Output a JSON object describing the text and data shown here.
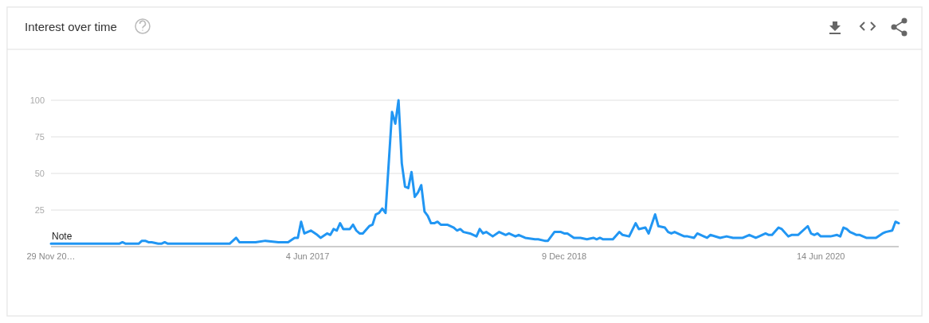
{
  "chart_data": {
    "type": "line",
    "title": "Interest over time",
    "x": [
      "2015-11-29",
      "2016-04-24",
      "2016-05-01",
      "2016-05-08",
      "2016-06-05",
      "2016-06-12",
      "2016-06-19",
      "2016-06-26",
      "2016-07-03",
      "2016-07-17",
      "2016-07-24",
      "2016-07-31",
      "2016-08-07",
      "2016-12-18",
      "2016-12-25",
      "2017-01-01",
      "2017-01-08",
      "2017-01-22",
      "2017-02-12",
      "2017-03-05",
      "2017-04-02",
      "2017-04-23",
      "2017-05-07",
      "2017-05-14",
      "2017-05-21",
      "2017-05-28",
      "2017-06-11",
      "2017-06-25",
      "2017-07-02",
      "2017-07-16",
      "2017-07-23",
      "2017-07-30",
      "2017-08-06",
      "2017-08-13",
      "2017-08-20",
      "2017-09-03",
      "2017-09-10",
      "2017-09-17",
      "2017-09-24",
      "2017-10-01",
      "2017-10-15",
      "2017-10-22",
      "2017-10-29",
      "2017-11-05",
      "2017-11-12",
      "2017-11-19",
      "2017-12-03",
      "2017-12-10",
      "2017-12-17",
      "2017-12-24",
      "2017-12-31",
      "2018-01-07",
      "2018-01-14",
      "2018-01-21",
      "2018-01-28",
      "2018-02-04",
      "2018-02-11",
      "2018-02-18",
      "2018-02-25",
      "2018-03-04",
      "2018-03-11",
      "2018-03-18",
      "2018-04-01",
      "2018-04-15",
      "2018-04-22",
      "2018-04-29",
      "2018-05-06",
      "2018-05-20",
      "2018-06-03",
      "2018-06-10",
      "2018-06-17",
      "2018-06-24",
      "2018-07-08",
      "2018-07-22",
      "2018-08-05",
      "2018-08-12",
      "2018-08-26",
      "2018-09-02",
      "2018-09-16",
      "2018-10-07",
      "2018-10-14",
      "2018-10-28",
      "2018-11-04",
      "2018-11-18",
      "2018-12-02",
      "2018-12-09",
      "2018-12-16",
      "2018-12-30",
      "2019-01-13",
      "2019-01-27",
      "2019-02-10",
      "2019-02-17",
      "2019-02-24",
      "2019-03-03",
      "2019-03-24",
      "2019-04-07",
      "2019-04-14",
      "2019-04-28",
      "2019-05-12",
      "2019-05-19",
      "2019-06-02",
      "2019-06-09",
      "2019-06-23",
      "2019-06-30",
      "2019-07-14",
      "2019-07-21",
      "2019-07-28",
      "2019-08-04",
      "2019-08-18",
      "2019-08-25",
      "2019-09-01",
      "2019-09-15",
      "2019-09-22",
      "2019-10-06",
      "2019-10-13",
      "2019-10-20",
      "2019-11-10",
      "2019-11-24",
      "2019-12-08",
      "2019-12-29",
      "2020-01-12",
      "2020-01-26",
      "2020-02-02",
      "2020-02-16",
      "2020-02-23",
      "2020-03-01",
      "2020-03-15",
      "2020-03-22",
      "2020-04-05",
      "2020-04-12",
      "2020-04-26",
      "2020-05-17",
      "2020-05-24",
      "2020-05-31",
      "2020-06-07",
      "2020-06-14",
      "2020-07-05",
      "2020-07-19",
      "2020-07-26",
      "2020-08-02",
      "2020-08-09",
      "2020-08-16",
      "2020-08-23",
      "2020-08-30",
      "2020-09-06",
      "2020-09-20",
      "2020-10-11",
      "2020-10-25",
      "2020-11-01",
      "2020-11-15",
      "2020-11-22",
      "2020-11-29"
    ],
    "series": [
      {
        "color": "#2196f3",
        "values": [
          2,
          2,
          3,
          2,
          2,
          4,
          4,
          3,
          3,
          2,
          2,
          3,
          2,
          2,
          4,
          6,
          3,
          3,
          3,
          4,
          3,
          3,
          6,
          6,
          17,
          9,
          11,
          8,
          6,
          9,
          8,
          12,
          11,
          16,
          12,
          12,
          15,
          11,
          9,
          9,
          14,
          15,
          22,
          23,
          26,
          23,
          92,
          84,
          100,
          57,
          41,
          40,
          51,
          34,
          37,
          42,
          24,
          21,
          16,
          16,
          17,
          15,
          15,
          13,
          11,
          12,
          10,
          9,
          7,
          12,
          9,
          10,
          7,
          10,
          8,
          9,
          7,
          8,
          6,
          5,
          5,
          4,
          4,
          10,
          10,
          9,
          9,
          6,
          6,
          5,
          6,
          5,
          6,
          5,
          5,
          10,
          8,
          7,
          16,
          12,
          13,
          9,
          22,
          14,
          13,
          10,
          9,
          10,
          8,
          7,
          7,
          6,
          9,
          7,
          6,
          8,
          6,
          7,
          6,
          6,
          8,
          6,
          7,
          9,
          8,
          8,
          13,
          12,
          7,
          8,
          8,
          14,
          9,
          8,
          9,
          7,
          7,
          8,
          7,
          13,
          12,
          10,
          9,
          8,
          8,
          6,
          6,
          9,
          10,
          11,
          17,
          16
        ]
      }
    ],
    "xlim": [
      "2015-11-29",
      "2020-11-29"
    ],
    "xticks": [
      {
        "value": "2015-11-29",
        "label": "29 Nov 20…"
      },
      {
        "value": "2017-06-04",
        "label": "4 Jun 2017"
      },
      {
        "value": "2018-12-09",
        "label": "9 Dec 2018"
      },
      {
        "value": "2020-06-14",
        "label": "14 Jun 2020"
      }
    ],
    "ylim": [
      0,
      100
    ],
    "yticks": [
      25,
      50,
      75,
      100
    ],
    "grid": "y",
    "marker": "none",
    "line_style": "solid",
    "annotations": [
      {
        "text": "Note",
        "x": "2015-11-29",
        "y": 2
      }
    ]
  }
}
